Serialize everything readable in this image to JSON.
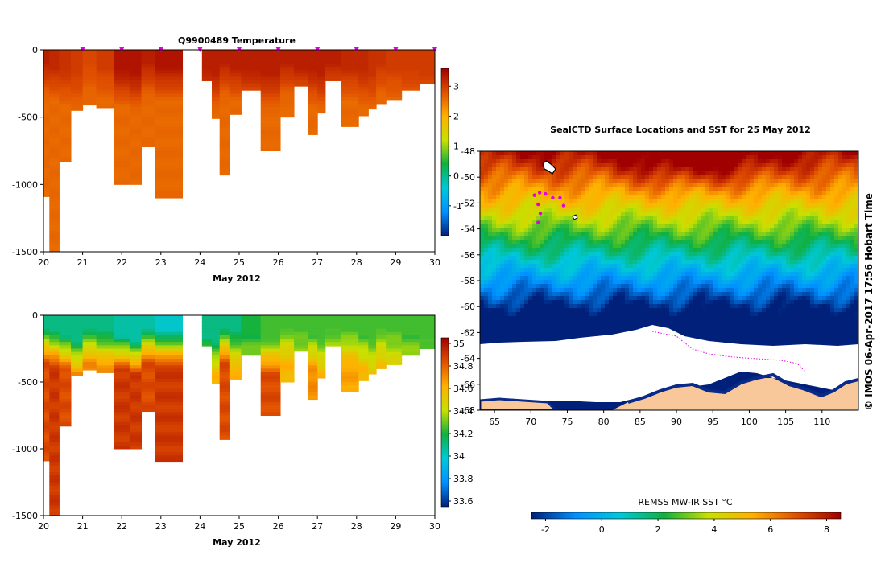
{
  "copyright": "© IMOS 06-Apr-2017 17:56 Hobart Time",
  "chart_data": [
    {
      "id": "temperature",
      "type": "heatmap",
      "title": "Q9900489  Temperature",
      "xlabel": "May 2012",
      "ylabel": "",
      "x_ticks": [
        "20",
        "21",
        "22",
        "23",
        "24",
        "25",
        "26",
        "27",
        "28",
        "29",
        "30"
      ],
      "xlim": [
        20,
        30
      ],
      "y_ticks": [
        0,
        -500,
        -1000,
        -1500
      ],
      "ylim": [
        -1500,
        0
      ],
      "profile_markers": [
        21,
        22,
        23,
        24,
        25,
        26,
        27,
        28,
        29,
        30
      ],
      "colorbar": {
        "ticks": [
          3,
          2,
          1,
          0,
          -1
        ],
        "range": [
          -2,
          3.6
        ],
        "stops": [
          "#00207a",
          "#0090ff",
          "#00c8d8",
          "#10b040",
          "#c8e000",
          "#ffb000",
          "#e05000",
          "#a00000"
        ]
      },
      "profiles": [
        {
          "x0": 20.0,
          "x1": 20.15,
          "maxDepth": 1090,
          "surface": 3.3,
          "deep": 2.6
        },
        {
          "x0": 20.15,
          "x1": 20.4,
          "maxDepth": 1500,
          "surface": 3.2,
          "deep": 2.6
        },
        {
          "x0": 20.4,
          "x1": 20.7,
          "maxDepth": 830,
          "surface": 3.1,
          "deep": 2.6
        },
        {
          "x0": 20.7,
          "x1": 21.0,
          "maxDepth": 450,
          "surface": 3.0,
          "deep": 2.6
        },
        {
          "x0": 21.0,
          "x1": 21.35,
          "maxDepth": 410,
          "surface": 2.9,
          "deep": 2.6
        },
        {
          "x0": 21.35,
          "x1": 21.8,
          "maxDepth": 430,
          "surface": 3.0,
          "deep": 2.6
        },
        {
          "x0": 21.8,
          "x1": 22.2,
          "maxDepth": 1000,
          "surface": 3.4,
          "deep": 2.6
        },
        {
          "x0": 22.2,
          "x1": 22.5,
          "maxDepth": 1000,
          "surface": 3.4,
          "deep": 2.6
        },
        {
          "x0": 22.5,
          "x1": 22.85,
          "maxDepth": 720,
          "surface": 3.3,
          "deep": 2.6
        },
        {
          "x0": 22.85,
          "x1": 23.55,
          "maxDepth": 1100,
          "surface": 3.4,
          "deep": 2.6
        },
        {
          "x0": 24.05,
          "x1": 24.3,
          "maxDepth": 230,
          "surface": 3.3,
          "deep": 2.6
        },
        {
          "x0": 24.3,
          "x1": 24.5,
          "maxDepth": 510,
          "surface": 3.3,
          "deep": 2.6
        },
        {
          "x0": 24.5,
          "x1": 24.75,
          "maxDepth": 930,
          "surface": 3.3,
          "deep": 2.6
        },
        {
          "x0": 24.75,
          "x1": 25.05,
          "maxDepth": 480,
          "surface": 3.3,
          "deep": 2.6
        },
        {
          "x0": 25.05,
          "x1": 25.55,
          "maxDepth": 300,
          "surface": 3.3,
          "deep": 2.6
        },
        {
          "x0": 25.55,
          "x1": 26.05,
          "maxDepth": 750,
          "surface": 3.3,
          "deep": 2.6
        },
        {
          "x0": 26.05,
          "x1": 26.4,
          "maxDepth": 500,
          "surface": 3.3,
          "deep": 2.6
        },
        {
          "x0": 26.4,
          "x1": 26.75,
          "maxDepth": 270,
          "surface": 3.3,
          "deep": 2.6
        },
        {
          "x0": 26.75,
          "x1": 27.0,
          "maxDepth": 630,
          "surface": 3.3,
          "deep": 2.6
        },
        {
          "x0": 27.0,
          "x1": 27.2,
          "maxDepth": 470,
          "surface": 3.3,
          "deep": 2.6
        },
        {
          "x0": 27.2,
          "x1": 27.6,
          "maxDepth": 230,
          "surface": 3.3,
          "deep": 2.6
        },
        {
          "x0": 27.6,
          "x1": 28.05,
          "maxDepth": 570,
          "surface": 3.2,
          "deep": 2.6
        },
        {
          "x0": 28.05,
          "x1": 28.3,
          "maxDepth": 490,
          "surface": 3.2,
          "deep": 2.6
        },
        {
          "x0": 28.3,
          "x1": 28.5,
          "maxDepth": 440,
          "surface": 3.1,
          "deep": 2.6
        },
        {
          "x0": 28.5,
          "x1": 28.75,
          "maxDepth": 400,
          "surface": 3.1,
          "deep": 2.6
        },
        {
          "x0": 28.75,
          "x1": 29.15,
          "maxDepth": 370,
          "surface": 3.0,
          "deep": 2.6
        },
        {
          "x0": 29.15,
          "x1": 29.6,
          "maxDepth": 300,
          "surface": 3.0,
          "deep": 2.6
        },
        {
          "x0": 29.6,
          "x1": 30.0,
          "maxDepth": 250,
          "surface": 3.0,
          "deep": 2.6
        }
      ]
    },
    {
      "id": "salinity",
      "type": "heatmap",
      "title": "",
      "xlabel": "May 2012",
      "ylabel": "",
      "x_ticks": [
        "20",
        "21",
        "22",
        "23",
        "24",
        "25",
        "26",
        "27",
        "28",
        "29",
        "30"
      ],
      "xlim": [
        20,
        30
      ],
      "y_ticks": [
        0,
        -500,
        -1000,
        -1500
      ],
      "ylim": [
        -1500,
        0
      ],
      "colorbar": {
        "ticks": [
          "35",
          "34.8",
          "34.6",
          "34.4",
          "34.2",
          "34",
          "33.8",
          "33.6"
        ],
        "range": [
          33.55,
          35.05
        ],
        "stops": [
          "#00207a",
          "#0090ff",
          "#00c8d8",
          "#10b040",
          "#c8e000",
          "#ffb000",
          "#e05000",
          "#a00000"
        ]
      },
      "profiles": [
        {
          "x0": 20.0,
          "x1": 20.15,
          "maxDepth": 1090,
          "surface": 34.1,
          "deep": 34.85
        },
        {
          "x0": 20.15,
          "x1": 20.4,
          "maxDepth": 1500,
          "surface": 34.1,
          "deep": 34.9
        },
        {
          "x0": 20.4,
          "x1": 20.7,
          "maxDepth": 830,
          "surface": 34.1,
          "deep": 34.85
        },
        {
          "x0": 20.7,
          "x1": 21.0,
          "maxDepth": 450,
          "surface": 34.1,
          "deep": 34.7
        },
        {
          "x0": 21.0,
          "x1": 21.35,
          "maxDepth": 410,
          "surface": 34.1,
          "deep": 34.7
        },
        {
          "x0": 21.35,
          "x1": 21.8,
          "maxDepth": 430,
          "surface": 34.1,
          "deep": 34.7
        },
        {
          "x0": 21.8,
          "x1": 22.2,
          "maxDepth": 1000,
          "surface": 34.05,
          "deep": 34.9
        },
        {
          "x0": 22.2,
          "x1": 22.5,
          "maxDepth": 1000,
          "surface": 34.05,
          "deep": 34.9
        },
        {
          "x0": 22.5,
          "x1": 22.85,
          "maxDepth": 720,
          "surface": 34.05,
          "deep": 34.85
        },
        {
          "x0": 22.85,
          "x1": 23.55,
          "maxDepth": 1100,
          "surface": 34.0,
          "deep": 34.9
        },
        {
          "x0": 24.05,
          "x1": 24.3,
          "maxDepth": 230,
          "surface": 34.1,
          "deep": 34.45
        },
        {
          "x0": 24.3,
          "x1": 24.5,
          "maxDepth": 510,
          "surface": 34.1,
          "deep": 34.6
        },
        {
          "x0": 24.5,
          "x1": 24.75,
          "maxDepth": 930,
          "surface": 34.1,
          "deep": 34.85
        },
        {
          "x0": 24.75,
          "x1": 25.05,
          "maxDepth": 480,
          "surface": 34.1,
          "deep": 34.6
        },
        {
          "x0": 25.05,
          "x1": 25.55,
          "maxDepth": 300,
          "surface": 34.2,
          "deep": 34.45
        },
        {
          "x0": 25.55,
          "x1": 26.05,
          "maxDepth": 750,
          "surface": 34.25,
          "deep": 34.85
        },
        {
          "x0": 26.05,
          "x1": 26.4,
          "maxDepth": 500,
          "surface": 34.25,
          "deep": 34.6
        },
        {
          "x0": 26.4,
          "x1": 26.75,
          "maxDepth": 270,
          "surface": 34.25,
          "deep": 34.45
        },
        {
          "x0": 26.75,
          "x1": 27.0,
          "maxDepth": 630,
          "surface": 34.25,
          "deep": 34.7
        },
        {
          "x0": 27.0,
          "x1": 27.2,
          "maxDepth": 470,
          "surface": 34.25,
          "deep": 34.6
        },
        {
          "x0": 27.2,
          "x1": 27.6,
          "maxDepth": 230,
          "surface": 34.25,
          "deep": 34.45
        },
        {
          "x0": 27.6,
          "x1": 28.05,
          "maxDepth": 570,
          "surface": 34.25,
          "deep": 34.65
        },
        {
          "x0": 28.05,
          "x1": 28.3,
          "maxDepth": 490,
          "surface": 34.25,
          "deep": 34.6
        },
        {
          "x0": 28.3,
          "x1": 28.5,
          "maxDepth": 440,
          "surface": 34.25,
          "deep": 34.55
        },
        {
          "x0": 28.5,
          "x1": 28.75,
          "maxDepth": 400,
          "surface": 34.25,
          "deep": 34.55
        },
        {
          "x0": 28.75,
          "x1": 29.15,
          "maxDepth": 370,
          "surface": 34.25,
          "deep": 34.5
        },
        {
          "x0": 29.15,
          "x1": 29.6,
          "maxDepth": 300,
          "surface": 34.25,
          "deep": 34.45
        },
        {
          "x0": 29.6,
          "x1": 30.0,
          "maxDepth": 250,
          "surface": 34.25,
          "deep": 34.45
        }
      ]
    },
    {
      "id": "sst-map",
      "type": "heatmap",
      "title": "SealCTD Surface Locations and SST for 25 May 2012",
      "x_ticks": [
        "65",
        "70",
        "75",
        "80",
        "85",
        "90",
        "95",
        "100",
        "105",
        "110"
      ],
      "xlim": [
        63,
        115
      ],
      "y_ticks": [
        "-48",
        "-50",
        "-52",
        "-54",
        "-56",
        "-58",
        "-60",
        "-62",
        "-64",
        "-66",
        "-68"
      ],
      "ylim": [
        -68,
        -48
      ],
      "colorbar": {
        "label": "REMSS MW-IR SST °C",
        "ticks": [
          "-2",
          "0",
          "2",
          "4",
          "6",
          "8"
        ],
        "range": [
          -2.5,
          8.5
        ],
        "stops": [
          "#00207a",
          "#0090ff",
          "#00c8d8",
          "#10b040",
          "#c8e000",
          "#ffb000",
          "#e05000",
          "#a00000"
        ]
      },
      "land_color": "#f8c89a",
      "ice_color": "#ffffff",
      "track_color": "#e000e0",
      "locations": [
        {
          "lon": 70.5,
          "lat": -51.4
        },
        {
          "lon": 71.2,
          "lat": -51.2
        },
        {
          "lon": 72.0,
          "lat": -51.3
        },
        {
          "lon": 73.0,
          "lat": -51.6
        },
        {
          "lon": 74.0,
          "lat": -51.6
        },
        {
          "lon": 74.5,
          "lat": -52.2
        },
        {
          "lon": 71.0,
          "lat": -52.1
        },
        {
          "lon": 71.3,
          "lat": -52.8
        },
        {
          "lon": 71.0,
          "lat": -53.5
        }
      ]
    }
  ]
}
